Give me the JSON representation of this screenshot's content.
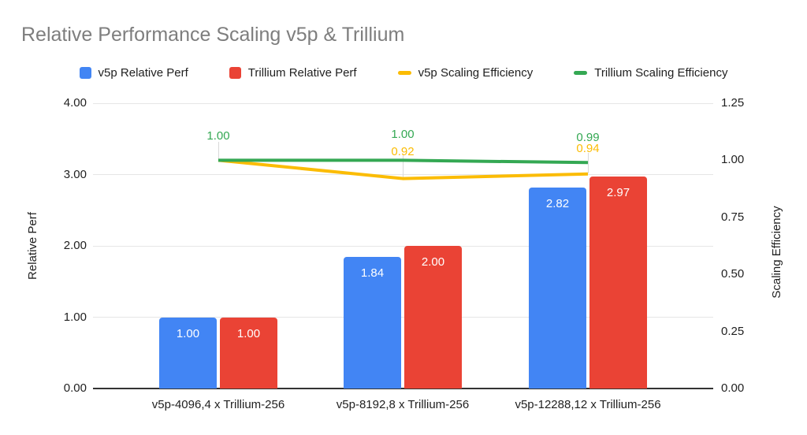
{
  "chart_data": {
    "type": "combo-bar-line",
    "title": "Relative Performance Scaling v5p & Trillium",
    "categories": [
      "v5p-4096,4 x Trillium-256",
      "v5p-8192,8 x Trillium-256",
      "v5p-12288,12 x Trillium-256"
    ],
    "bar_series": [
      {
        "name": "v5p Relative Perf",
        "color": "#4285F4",
        "axis": "left",
        "values": [
          1.0,
          1.84,
          2.82
        ],
        "labels": [
          "1.00",
          "1.84",
          "2.82"
        ]
      },
      {
        "name": "Trillium Relative Perf",
        "color": "#EA4335",
        "axis": "left",
        "values": [
          1.0,
          2.0,
          2.97
        ],
        "labels": [
          "1.00",
          "2.00",
          "2.97"
        ]
      }
    ],
    "line_series": [
      {
        "name": "v5p Scaling Efficiency",
        "color": "#FBBC04",
        "axis": "right",
        "values": [
          1.0,
          0.92,
          0.94
        ],
        "labels": [
          null,
          "0.92",
          "0.94"
        ]
      },
      {
        "name": "Trillium Scaling Efficiency",
        "color": "#34A853",
        "axis": "right",
        "values": [
          1.0,
          1.0,
          0.99
        ],
        "labels": [
          "1.00",
          "1.00",
          "0.99"
        ]
      }
    ],
    "left_axis": {
      "title": "Relative Perf",
      "min": 0,
      "max": 4,
      "ticks": [
        "0.00",
        "1.00",
        "2.00",
        "3.00",
        "4.00"
      ]
    },
    "right_axis": {
      "title": "Scaling Efficiency",
      "min": 0,
      "max": 1.25,
      "ticks": [
        "0.00",
        "0.25",
        "0.50",
        "0.75",
        "1.00",
        "1.25"
      ]
    },
    "legend": [
      {
        "label": "v5p Relative Perf",
        "color": "#4285F4",
        "shape": "square"
      },
      {
        "label": "Trillium Relative Perf",
        "color": "#EA4335",
        "shape": "square"
      },
      {
        "label": "v5p Scaling Efficiency",
        "color": "#FBBC04",
        "shape": "dash"
      },
      {
        "label": "Trillium Scaling Efficiency",
        "color": "#34A853",
        "shape": "dash"
      }
    ],
    "legend_position": "top",
    "grid": true,
    "title_color": "#7e7e7e"
  }
}
